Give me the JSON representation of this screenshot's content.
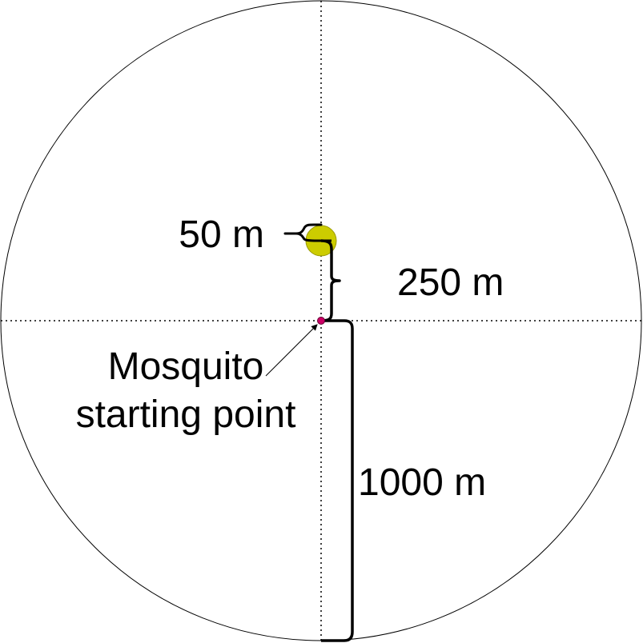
{
  "labels": {
    "target_radius": "50 m",
    "target_distance": "250 m",
    "field_radius": "1000 m",
    "start_line1": "Mosquito",
    "start_line2": "starting point"
  },
  "colors": {
    "target_fill": "#cccc00",
    "target_stroke": "#999900",
    "start_fill": "#cc0066",
    "line": "#000000"
  }
}
